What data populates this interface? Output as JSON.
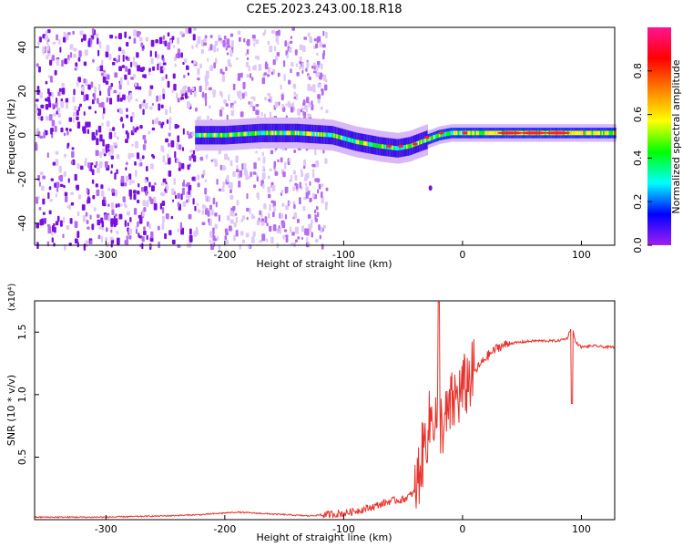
{
  "title": "C2E5.2023.243.00.18.R18",
  "chart_data": [
    {
      "type": "heatmap",
      "xlabel": "Height of straight line (km)",
      "ylabel": "Frequency (Hz)",
      "xlim": [
        -360,
        128
      ],
      "ylim": [
        -50,
        49
      ],
      "x_ticks": [
        "-300",
        "-200",
        "-100",
        "0",
        "100"
      ],
      "x_tick_values": [
        -300,
        -200,
        -100,
        0,
        100
      ],
      "y_ticks": [
        "40",
        "20",
        "0",
        "-20",
        "-40"
      ],
      "y_tick_values": [
        40,
        20,
        0,
        -20,
        -40
      ],
      "colorbar": {
        "label": "Normalized spectral amplitude",
        "range": [
          0,
          1
        ],
        "ticks": [
          "0.0",
          "0.2",
          "0.4",
          "0.6",
          "0.8"
        ],
        "tick_values": [
          0.0,
          0.2,
          0.4,
          0.6,
          0.8
        ],
        "colormap": [
          "#ffffff",
          "#a020f0",
          "#0000ff",
          "#00ffff",
          "#00ff00",
          "#ffff00",
          "#ff8000",
          "#ff0000",
          "#ff1493"
        ]
      },
      "features": {
        "noise_region_x": [
          -360,
          -115
        ],
        "dense_noise_x": [
          -360,
          -225
        ],
        "carrier_track": {
          "x": [
            -225,
            -200,
            -170,
            -140,
            -110,
            -90,
            -70,
            -55,
            -45,
            -35,
            -20,
            -10,
            0,
            20,
            50,
            80,
            100,
            128
          ],
          "y": [
            0,
            0,
            1,
            1,
            0,
            -3,
            -5,
            -6,
            -5,
            -3,
            0,
            1,
            1,
            1,
            1,
            1,
            1,
            1
          ]
        },
        "isolated_blob": {
          "x": -27,
          "y": -24
        }
      }
    },
    {
      "type": "line",
      "xlabel": "Height of straight line (km)",
      "ylabel": "SNR (10 * v/v)",
      "y_scale_label": "(x10⁴)",
      "xlim": [
        -360,
        128
      ],
      "ylim": [
        0,
        1.75
      ],
      "x_ticks": [
        "-300",
        "-200",
        "-100",
        "0",
        "100"
      ],
      "x_tick_values": [
        -300,
        -200,
        -100,
        0,
        100
      ],
      "y_ticks": [
        "1.5",
        "1.0",
        "0.5"
      ],
      "y_tick_values": [
        1.5,
        1.0,
        0.5
      ],
      "series": [
        {
          "color": "#e8322c",
          "x": [
            -360,
            -300,
            -250,
            -220,
            -190,
            -170,
            -150,
            -130,
            -115,
            -100,
            -90,
            -80,
            -70,
            -60,
            -50,
            -40,
            -35,
            -30,
            -25,
            -20,
            -15,
            -10,
            -5,
            0,
            5,
            10,
            20,
            30,
            40,
            50,
            60,
            70,
            80,
            88,
            92,
            95,
            100,
            110,
            120,
            128
          ],
          "y": [
            0.02,
            0.02,
            0.03,
            0.04,
            0.06,
            0.05,
            0.04,
            0.03,
            0.04,
            0.05,
            0.07,
            0.09,
            0.12,
            0.15,
            0.16,
            0.22,
            0.45,
            0.7,
            0.85,
            0.8,
            0.75,
            0.9,
            0.98,
            1.03,
            1.12,
            1.18,
            1.3,
            1.38,
            1.41,
            1.42,
            1.43,
            1.43,
            1.43,
            1.45,
            1.55,
            1.42,
            1.38,
            1.39,
            1.38,
            1.38
          ]
        }
      ]
    }
  ]
}
